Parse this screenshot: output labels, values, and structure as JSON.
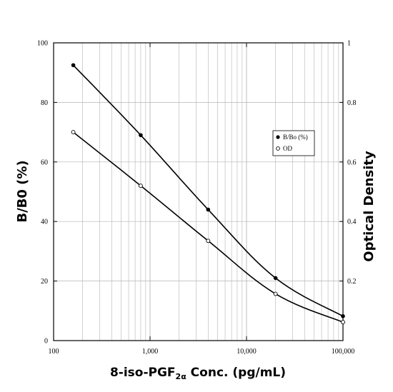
{
  "chart_data": {
    "type": "line",
    "x_scale": "log",
    "xlim": [
      100,
      100000
    ],
    "ylim_left": [
      0,
      100
    ],
    "ylim_right": [
      0,
      1
    ],
    "grid": true,
    "legend_position": "right",
    "xlabel_main": "8-iso-PGF",
    "xlabel_sub": "2α",
    "xlabel_rest": " Conc. (pg/mL)",
    "ylabel_left": "B/B0 (%)",
    "ylabel_right": "Optical Density",
    "x_ticks": [
      {
        "value": 100,
        "label": "100"
      },
      {
        "value": 1000,
        "label": "1,000"
      },
      {
        "value": 10000,
        "label": "10,000"
      },
      {
        "value": 100000,
        "label": "100,000"
      }
    ],
    "y_left_ticks": [
      {
        "value": 0,
        "label": "0"
      },
      {
        "value": 20,
        "label": "20"
      },
      {
        "value": 40,
        "label": "40"
      },
      {
        "value": 60,
        "label": "60"
      },
      {
        "value": 80,
        "label": "80"
      },
      {
        "value": 100,
        "label": "100"
      }
    ],
    "y_right_ticks": [
      {
        "value": 0.2,
        "label": "0.2"
      },
      {
        "value": 0.4,
        "label": "0.4"
      },
      {
        "value": 0.6,
        "label": "0.6"
      },
      {
        "value": 0.8,
        "label": "0.8"
      },
      {
        "value": 1,
        "label": "1"
      }
    ],
    "series": [
      {
        "name": "B/Bo (%)",
        "axis": "left",
        "marker": "filled",
        "x": [
          160,
          800,
          4000,
          20000,
          100000
        ],
        "y": [
          92.5,
          69,
          44,
          21,
          8.2
        ]
      },
      {
        "name": "OD",
        "axis": "right",
        "marker": "open",
        "x": [
          160,
          800,
          4000,
          20000,
          100000
        ],
        "y": [
          0.7,
          0.52,
          0.335,
          0.157,
          0.062
        ]
      }
    ]
  }
}
